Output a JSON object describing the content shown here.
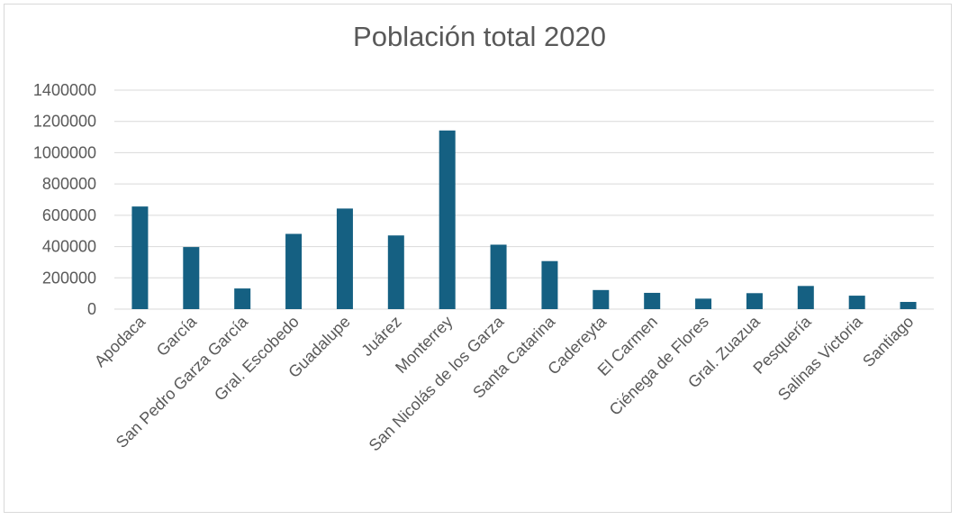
{
  "chart_data": {
    "type": "bar",
    "title": "Población total 2020",
    "xlabel": "",
    "ylabel": "",
    "ylim": [
      0,
      1400000
    ],
    "yticks": [
      0,
      200000,
      400000,
      600000,
      800000,
      1000000,
      1200000,
      1400000
    ],
    "ytick_labels": [
      "0",
      "200000",
      "400000",
      "600000",
      "800000",
      "1000000",
      "1200000",
      "1400000"
    ],
    "categories": [
      "Apodaca",
      "García",
      "San Pedro Garza García",
      "Gral. Escobedo",
      "Guadalupe",
      "Juárez",
      "Monterrey",
      "San Nicolás de los Garza",
      "Santa Catarina",
      "Cadereyta",
      "El Carmen",
      "Ciénega de Flores",
      "Gral. Zuazua",
      "Pesquería",
      "Salinas Victoria",
      "Santiago"
    ],
    "values": [
      656000,
      397000,
      132000,
      481000,
      643000,
      471000,
      1142000,
      412000,
      307000,
      122000,
      104000,
      67000,
      102000,
      148000,
      86000,
      46000
    ],
    "grid": true,
    "legend": "none",
    "bar_color": "#156082"
  }
}
